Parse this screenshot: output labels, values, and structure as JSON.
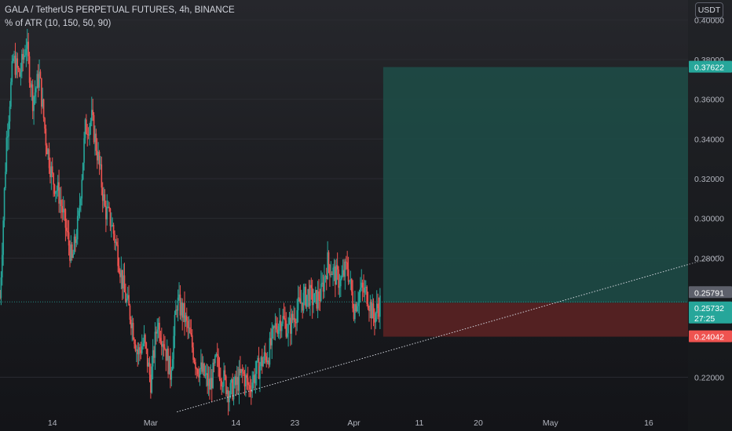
{
  "header": {
    "symbol_line": "GALA / TetherUS PERPETUAL FUTURES, 4h, BINANCE",
    "indicator_line": "% of ATR (10, 150, 50, 90)",
    "currency_button": "USDT"
  },
  "colors": {
    "up": "#26a69a",
    "down": "#ef5350",
    "profit_zone": "#1d4d48",
    "loss_zone": "#5a2224",
    "profit_label": "#26a69a",
    "loss_label": "#ef5350",
    "last_price_label": "#26a69a",
    "prev_close_label": "#5d606b",
    "axis_text": "#b2b5be"
  },
  "chart_data": {
    "type": "candlestick",
    "y_axis": {
      "ylim": [
        0.2,
        0.41
      ],
      "ticks": [
        "0.40000",
        "0.38000",
        "0.36000",
        "0.34000",
        "0.32000",
        "0.30000",
        "0.28000",
        "0.22000"
      ],
      "tick_values": [
        0.4,
        0.38,
        0.36,
        0.34,
        0.32,
        0.3,
        0.28,
        0.22
      ]
    },
    "x_axis": {
      "tick_labels": [
        "14",
        "Mar",
        "14",
        "23",
        "Apr",
        "11",
        "20",
        "May",
        "16"
      ]
    },
    "price_labels": [
      {
        "name": "target",
        "text": "0.37622",
        "value": 0.37622
      },
      {
        "name": "prev-close",
        "text": "0.25791",
        "value": 0.25791
      },
      {
        "name": "last-price",
        "text": "0.25732",
        "value": 0.25732,
        "countdown": "27:25"
      },
      {
        "name": "stop",
        "text": "0.24042",
        "value": 0.24042
      }
    ],
    "position": {
      "entry": 0.2575,
      "target": 0.37622,
      "stop": 0.24042
    },
    "trendline": {
      "from": {
        "date": "2022-03-05",
        "price": 0.2025
      },
      "to": {
        "date": "2022-05-27",
        "price": 0.2815
      }
    },
    "series": {
      "price_path": [
        [
          "2022-02-06",
          0.26
        ],
        [
          "2022-02-07",
          0.34
        ],
        [
          "2022-02-08",
          0.38
        ],
        [
          "2022-02-09",
          0.372
        ],
        [
          "2022-02-10",
          0.388
        ],
        [
          "2022-02-11",
          0.36
        ],
        [
          "2022-02-12",
          0.372
        ],
        [
          "2022-02-13",
          0.34
        ],
        [
          "2022-02-14",
          0.32
        ],
        [
          "2022-02-15",
          0.312
        ],
        [
          "2022-02-16",
          0.296
        ],
        [
          "2022-02-17",
          0.278
        ],
        [
          "2022-02-18",
          0.3
        ],
        [
          "2022-02-19",
          0.345
        ],
        [
          "2022-02-20",
          0.35
        ],
        [
          "2022-02-21",
          0.33
        ],
        [
          "2022-02-22",
          0.305
        ],
        [
          "2022-02-23",
          0.298
        ],
        [
          "2022-02-24",
          0.282
        ],
        [
          "2022-02-25",
          0.262
        ],
        [
          "2022-02-26",
          0.25
        ],
        [
          "2022-02-27",
          0.232
        ],
        [
          "2022-02-28",
          0.238
        ],
        [
          "2022-03-01",
          0.218
        ],
        [
          "2022-03-02",
          0.248
        ],
        [
          "2022-03-03",
          0.238
        ],
        [
          "2022-03-04",
          0.222
        ],
        [
          "2022-03-05",
          0.258
        ],
        [
          "2022-03-06",
          0.252
        ],
        [
          "2022-03-07",
          0.24
        ],
        [
          "2022-03-08",
          0.226
        ],
        [
          "2022-03-09",
          0.222
        ],
        [
          "2022-03-10",
          0.215
        ],
        [
          "2022-03-11",
          0.228
        ],
        [
          "2022-03-12",
          0.22
        ],
        [
          "2022-03-13",
          0.212
        ],
        [
          "2022-03-14",
          0.216
        ],
        [
          "2022-03-15",
          0.222
        ],
        [
          "2022-03-16",
          0.215
        ],
        [
          "2022-03-17",
          0.222
        ],
        [
          "2022-03-18",
          0.228
        ],
        [
          "2022-03-19",
          0.232
        ],
        [
          "2022-03-20",
          0.245
        ],
        [
          "2022-03-21",
          0.25
        ],
        [
          "2022-03-22",
          0.244
        ],
        [
          "2022-03-23",
          0.252
        ],
        [
          "2022-03-24",
          0.258
        ],
        [
          "2022-03-25",
          0.262
        ],
        [
          "2022-03-26",
          0.258
        ],
        [
          "2022-03-27",
          0.262
        ],
        [
          "2022-03-28",
          0.278
        ],
        [
          "2022-03-29",
          0.272
        ],
        [
          "2022-03-30",
          0.268
        ],
        [
          "2022-03-31",
          0.276
        ],
        [
          "2022-04-01",
          0.255
        ],
        [
          "2022-04-02",
          0.264
        ],
        [
          "2022-04-03",
          0.262
        ],
        [
          "2022-04-04",
          0.25
        ],
        [
          "2022-04-05",
          0.2575
        ]
      ]
    },
    "x_range": [
      "2022-02-06",
      "2022-05-22"
    ],
    "future_from": "2022-04-05"
  }
}
